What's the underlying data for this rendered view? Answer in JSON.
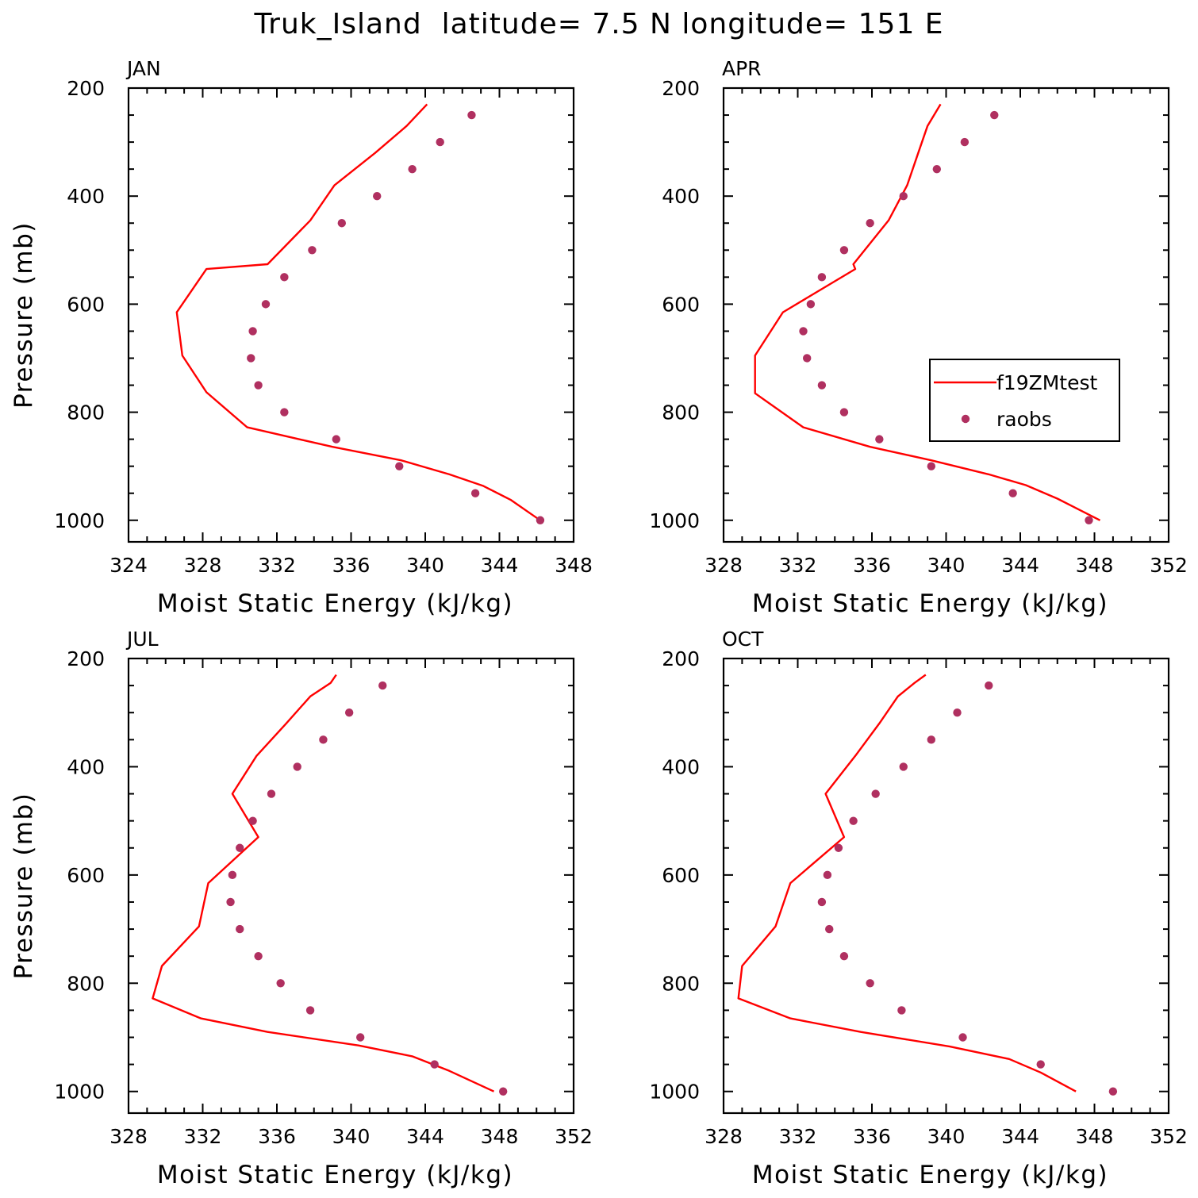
{
  "figure": {
    "title": "Truk_Island  latitude= 7.5 N longitude= 151 E",
    "line_color": "#ff0000",
    "marker_color": "#b03060"
  },
  "chart_data": [
    {
      "type": "line",
      "title": "JAN",
      "xlabel": "Moist Static Energy (kJ/kg)",
      "ylabel": "Pressure (mb)",
      "xlim": [
        324,
        348
      ],
      "xticks": [
        324,
        328,
        332,
        336,
        340,
        344,
        348
      ],
      "ylim": [
        1000,
        200
      ],
      "yticks": [
        200,
        400,
        600,
        800,
        1000
      ],
      "grid": false,
      "legend": null,
      "series": [
        {
          "name": "f19ZMtest",
          "kind": "line",
          "x": [
            346.2,
            344.6,
            343.1,
            341.3,
            338.7,
            335.0,
            330.4,
            328.2,
            326.9,
            326.6,
            328.2,
            331.5,
            333.8,
            335.1,
            337.3,
            339.0,
            340.1
          ],
          "y": [
            1000,
            962,
            936,
            915,
            889,
            864,
            828,
            763,
            695,
            615,
            535,
            526,
            445,
            380,
            320,
            270,
            230
          ]
        },
        {
          "name": "raobs",
          "kind": "scatter",
          "x": [
            346.2,
            342.7,
            338.6,
            335.2,
            332.4,
            331.0,
            330.6,
            330.7,
            331.4,
            332.4,
            333.9,
            335.5,
            337.4,
            339.3,
            340.8,
            342.5
          ],
          "y": [
            1000,
            950,
            900,
            850,
            800,
            750,
            700,
            650,
            600,
            550,
            500,
            450,
            400,
            350,
            300,
            250
          ]
        }
      ]
    },
    {
      "type": "line",
      "title": "APR",
      "xlabel": "Moist Static Energy (kJ/kg)",
      "ylabel": "",
      "xlim": [
        328,
        352
      ],
      "xticks": [
        328,
        332,
        336,
        340,
        344,
        348,
        352
      ],
      "ylim": [
        1000,
        200
      ],
      "yticks": [
        200,
        400,
        600,
        800,
        1000
      ],
      "grid": false,
      "legend": "center-right",
      "series": [
        {
          "name": "f19ZMtest",
          "kind": "line",
          "x": [
            348.3,
            346.0,
            344.3,
            342.3,
            339.2,
            335.9,
            332.3,
            329.7,
            329.7,
            331.2,
            335.1,
            335.0,
            336.9,
            337.9,
            338.5,
            339.0,
            339.7
          ],
          "y": [
            1000,
            960,
            935,
            915,
            889,
            864,
            828,
            765,
            695,
            615,
            535,
            526,
            445,
            380,
            320,
            270,
            230
          ]
        },
        {
          "name": "raobs",
          "kind": "scatter",
          "x": [
            347.7,
            343.6,
            339.2,
            336.4,
            334.5,
            333.3,
            332.5,
            332.3,
            332.7,
            333.3,
            334.5,
            335.9,
            337.7,
            339.5,
            341.0,
            342.6
          ],
          "y": [
            1000,
            950,
            900,
            850,
            800,
            750,
            700,
            650,
            600,
            550,
            500,
            450,
            400,
            350,
            300,
            250
          ]
        }
      ]
    },
    {
      "type": "line",
      "title": "JUL",
      "xlabel": "Moist Static Energy (kJ/kg)",
      "ylabel": "Pressure (mb)",
      "xlim": [
        328,
        352
      ],
      "xticks": [
        328,
        332,
        336,
        340,
        344,
        348,
        352
      ],
      "ylim": [
        1000,
        200
      ],
      "yticks": [
        200,
        400,
        600,
        800,
        1000
      ],
      "grid": false,
      "legend": null,
      "series": [
        {
          "name": "f19ZMtest",
          "kind": "line",
          "x": [
            347.7,
            345.3,
            343.3,
            340.4,
            335.5,
            331.9,
            329.3,
            329.8,
            331.8,
            332.3,
            335.0,
            333.6,
            334.9,
            336.5,
            337.8,
            338.9,
            339.2
          ],
          "y": [
            1000,
            962,
            935,
            915,
            890,
            865,
            828,
            768,
            695,
            615,
            530,
            450,
            380,
            320,
            270,
            245,
            230
          ]
        },
        {
          "name": "raobs",
          "kind": "scatter",
          "x": [
            348.2,
            344.5,
            340.5,
            337.8,
            336.2,
            335.0,
            334.0,
            333.5,
            333.6,
            334.0,
            334.7,
            335.7,
            337.1,
            338.5,
            339.9,
            341.7
          ],
          "y": [
            1000,
            950,
            900,
            850,
            800,
            750,
            700,
            650,
            600,
            550,
            500,
            450,
            400,
            350,
            300,
            250
          ]
        }
      ]
    },
    {
      "type": "line",
      "title": "OCT",
      "xlabel": "Moist Static Energy (kJ/kg)",
      "ylabel": "",
      "xlim": [
        328,
        352
      ],
      "xticks": [
        328,
        332,
        336,
        340,
        344,
        348,
        352
      ],
      "ylim": [
        1000,
        200
      ],
      "yticks": [
        200,
        400,
        600,
        800,
        1000
      ],
      "grid": false,
      "legend": null,
      "series": [
        {
          "name": "f19ZMtest",
          "kind": "line",
          "x": [
            347.0,
            345.1,
            343.4,
            340.2,
            335.4,
            331.6,
            328.8,
            329.0,
            330.8,
            331.6,
            334.5,
            333.5,
            335.1,
            336.4,
            337.4,
            338.3,
            338.9
          ],
          "y": [
            1000,
            965,
            940,
            917,
            890,
            865,
            828,
            768,
            695,
            615,
            530,
            450,
            380,
            320,
            270,
            245,
            230
          ]
        },
        {
          "name": "raobs",
          "kind": "scatter",
          "x": [
            349.0,
            345.1,
            340.9,
            337.6,
            335.9,
            334.5,
            333.7,
            333.3,
            333.6,
            334.2,
            335.0,
            336.2,
            337.7,
            339.2,
            340.6,
            342.3
          ],
          "y": [
            1000,
            950,
            900,
            850,
            800,
            750,
            700,
            650,
            600,
            550,
            500,
            450,
            400,
            350,
            300,
            250
          ]
        }
      ]
    }
  ]
}
